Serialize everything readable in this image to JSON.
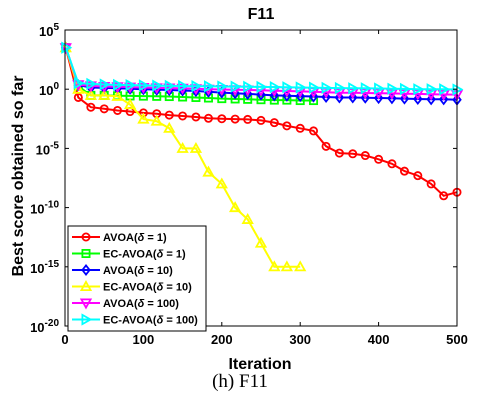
{
  "caption": "(h) F11",
  "chart_data": {
    "type": "line",
    "title": "F11",
    "xlabel": "Iteration",
    "ylabel": "Best score obtained so far",
    "yscale": "log",
    "xlim": [
      0,
      500
    ],
    "ylim": [
      1e-20,
      100000.0
    ],
    "xticks": [
      0,
      100,
      200,
      300,
      400,
      500
    ],
    "xtick_labels": [
      "0",
      "100",
      "200",
      "300",
      "400",
      "500"
    ],
    "ytick_labels": [
      {
        "value": 100000.0,
        "base": "10",
        "exp": "5"
      },
      {
        "value": 1,
        "base": "10",
        "exp": "0"
      },
      {
        "value": 1e-05,
        "base": "10",
        "exp": "-5"
      },
      {
        "value": 1e-10,
        "base": "10",
        "exp": "-10"
      },
      {
        "value": 1e-15,
        "base": "10",
        "exp": "-15"
      },
      {
        "value": 1e-20,
        "base": "10",
        "exp": "-20"
      }
    ],
    "legend_position": "bottom-left",
    "series": [
      {
        "label_prefix": "AVOA(",
        "symbol": "δ",
        "label_suffix": " = 1)",
        "color": "#ff0000",
        "marker": "circle",
        "points": [
          [
            1,
            3200.0
          ],
          [
            17,
            0.2
          ],
          [
            33,
            0.03
          ],
          [
            50,
            0.022
          ],
          [
            67,
            0.016
          ],
          [
            83,
            0.013
          ],
          [
            100,
            0.01
          ],
          [
            117,
            0.0085
          ],
          [
            133,
            0.0065
          ],
          [
            150,
            0.0055
          ],
          [
            167,
            0.0045
          ],
          [
            183,
            0.0035
          ],
          [
            200,
            0.0032
          ],
          [
            217,
            0.003
          ],
          [
            233,
            0.0028
          ],
          [
            250,
            0.0023
          ],
          [
            267,
            0.0015
          ],
          [
            283,
            0.0008
          ],
          [
            300,
            0.0005
          ],
          [
            317,
            0.0003
          ],
          [
            333,
            1.5e-05
          ],
          [
            350,
            4e-06
          ],
          [
            367,
            3.5e-06
          ],
          [
            383,
            2.5e-06
          ],
          [
            400,
            1.2e-06
          ],
          [
            417,
            5e-07
          ],
          [
            433,
            1.2e-07
          ],
          [
            450,
            5e-08
          ],
          [
            467,
            1e-08
          ],
          [
            483,
            1e-09
          ],
          [
            500,
            2e-09
          ]
        ]
      },
      {
        "label_prefix": "EC-AVOA(",
        "symbol": "δ",
        "label_suffix": " = 1)",
        "color": "#00ff00",
        "marker": "square",
        "points": [
          [
            1,
            3200.0
          ],
          [
            17,
            1.8
          ],
          [
            33,
            0.3
          ],
          [
            50,
            0.3
          ],
          [
            67,
            0.28
          ],
          [
            83,
            0.27
          ],
          [
            100,
            0.26
          ],
          [
            117,
            0.25
          ],
          [
            133,
            0.24
          ],
          [
            150,
            0.22
          ],
          [
            167,
            0.2
          ],
          [
            183,
            0.18
          ],
          [
            200,
            0.16
          ],
          [
            217,
            0.15
          ],
          [
            233,
            0.14
          ],
          [
            250,
            0.13
          ],
          [
            267,
            0.12
          ],
          [
            283,
            0.12
          ],
          [
            300,
            0.11
          ],
          [
            317,
            0.11
          ]
        ]
      },
      {
        "label_prefix": "AVOA(",
        "symbol": "δ",
        "label_suffix": " = 10)",
        "color": "#0000ff",
        "marker": "diamond",
        "points": [
          [
            1,
            3200.0
          ],
          [
            17,
            2.2
          ],
          [
            33,
            1.4
          ],
          [
            50,
            1.3
          ],
          [
            67,
            1.2
          ],
          [
            83,
            1.1
          ],
          [
            100,
            1.0
          ],
          [
            117,
            0.92
          ],
          [
            133,
            0.85
          ],
          [
            150,
            0.78
          ],
          [
            167,
            0.7
          ],
          [
            183,
            0.6
          ],
          [
            200,
            0.52
          ],
          [
            217,
            0.45
          ],
          [
            233,
            0.4
          ],
          [
            250,
            0.35
          ],
          [
            267,
            0.3
          ],
          [
            283,
            0.28
          ],
          [
            300,
            0.26
          ],
          [
            317,
            0.24
          ],
          [
            333,
            0.22
          ],
          [
            350,
            0.2
          ],
          [
            367,
            0.2
          ],
          [
            383,
            0.19
          ],
          [
            400,
            0.18
          ],
          [
            417,
            0.17
          ],
          [
            433,
            0.16
          ],
          [
            450,
            0.15
          ],
          [
            467,
            0.14
          ],
          [
            483,
            0.14
          ],
          [
            500,
            0.13
          ]
        ]
      },
      {
        "label_prefix": "EC-AVOA(",
        "symbol": "δ",
        "label_suffix": " = 10)",
        "color": "#ffff00",
        "marker": "triangle-up",
        "points": [
          [
            1,
            3200.0
          ],
          [
            17,
            1.0
          ],
          [
            33,
            0.3
          ],
          [
            50,
            0.3
          ],
          [
            67,
            0.25
          ],
          [
            83,
            0.05
          ],
          [
            100,
            0.003
          ],
          [
            117,
            0.002
          ],
          [
            133,
            0.0005
          ],
          [
            150,
            1e-05
          ],
          [
            167,
            1e-05
          ],
          [
            183,
            1e-07
          ],
          [
            200,
            1e-08
          ],
          [
            217,
            1e-10
          ],
          [
            233,
            1e-11
          ],
          [
            250,
            1e-13
          ],
          [
            267,
            1e-15
          ],
          [
            283,
            1e-15
          ],
          [
            300,
            1e-15
          ]
        ]
      },
      {
        "label_prefix": "AVOA(",
        "symbol": "δ",
        "label_suffix": " = 100)",
        "color": "#ff00ff",
        "marker": "triangle-down",
        "points": [
          [
            1,
            3200.0
          ],
          [
            17,
            2.4
          ],
          [
            33,
            1.9
          ],
          [
            50,
            1.7
          ],
          [
            67,
            1.6
          ],
          [
            83,
            1.5
          ],
          [
            100,
            1.4
          ],
          [
            117,
            1.3
          ],
          [
            133,
            1.25
          ],
          [
            150,
            1.2
          ],
          [
            167,
            1.1
          ],
          [
            183,
            1.0
          ],
          [
            200,
            0.95
          ],
          [
            217,
            0.9
          ],
          [
            233,
            0.85
          ],
          [
            250,
            0.8
          ],
          [
            267,
            0.75
          ],
          [
            283,
            0.7
          ],
          [
            300,
            0.65
          ],
          [
            317,
            0.6
          ],
          [
            333,
            0.55
          ],
          [
            350,
            0.5
          ],
          [
            367,
            0.5
          ],
          [
            383,
            0.48
          ],
          [
            400,
            0.46
          ],
          [
            417,
            0.44
          ],
          [
            433,
            0.42
          ],
          [
            450,
            0.4
          ],
          [
            467,
            0.38
          ],
          [
            483,
            0.36
          ],
          [
            500,
            0.35
          ]
        ]
      },
      {
        "label_prefix": "EC-AVOA(",
        "symbol": "δ",
        "label_suffix": " = 100)",
        "color": "#00ffff",
        "marker": "triangle-right",
        "points": [
          [
            1,
            3200.0
          ],
          [
            17,
            3.2
          ],
          [
            33,
            2.8
          ],
          [
            50,
            2.5
          ],
          [
            67,
            2.3
          ],
          [
            83,
            2.2
          ],
          [
            100,
            2.1
          ],
          [
            117,
            2.0
          ],
          [
            133,
            1.9
          ],
          [
            150,
            1.85
          ],
          [
            167,
            1.8
          ],
          [
            183,
            1.75
          ],
          [
            200,
            1.7
          ],
          [
            217,
            1.65
          ],
          [
            233,
            1.6
          ],
          [
            250,
            1.55
          ],
          [
            267,
            1.5
          ],
          [
            283,
            1.45
          ],
          [
            300,
            1.4
          ],
          [
            317,
            1.35
          ],
          [
            333,
            1.3
          ],
          [
            350,
            1.25
          ],
          [
            367,
            1.2
          ],
          [
            383,
            1.2
          ],
          [
            400,
            1.15
          ],
          [
            417,
            1.1
          ],
          [
            433,
            1.05
          ],
          [
            450,
            1.0
          ],
          [
            467,
            1.0
          ],
          [
            483,
            0.98
          ],
          [
            500,
            0.95
          ]
        ]
      }
    ]
  }
}
